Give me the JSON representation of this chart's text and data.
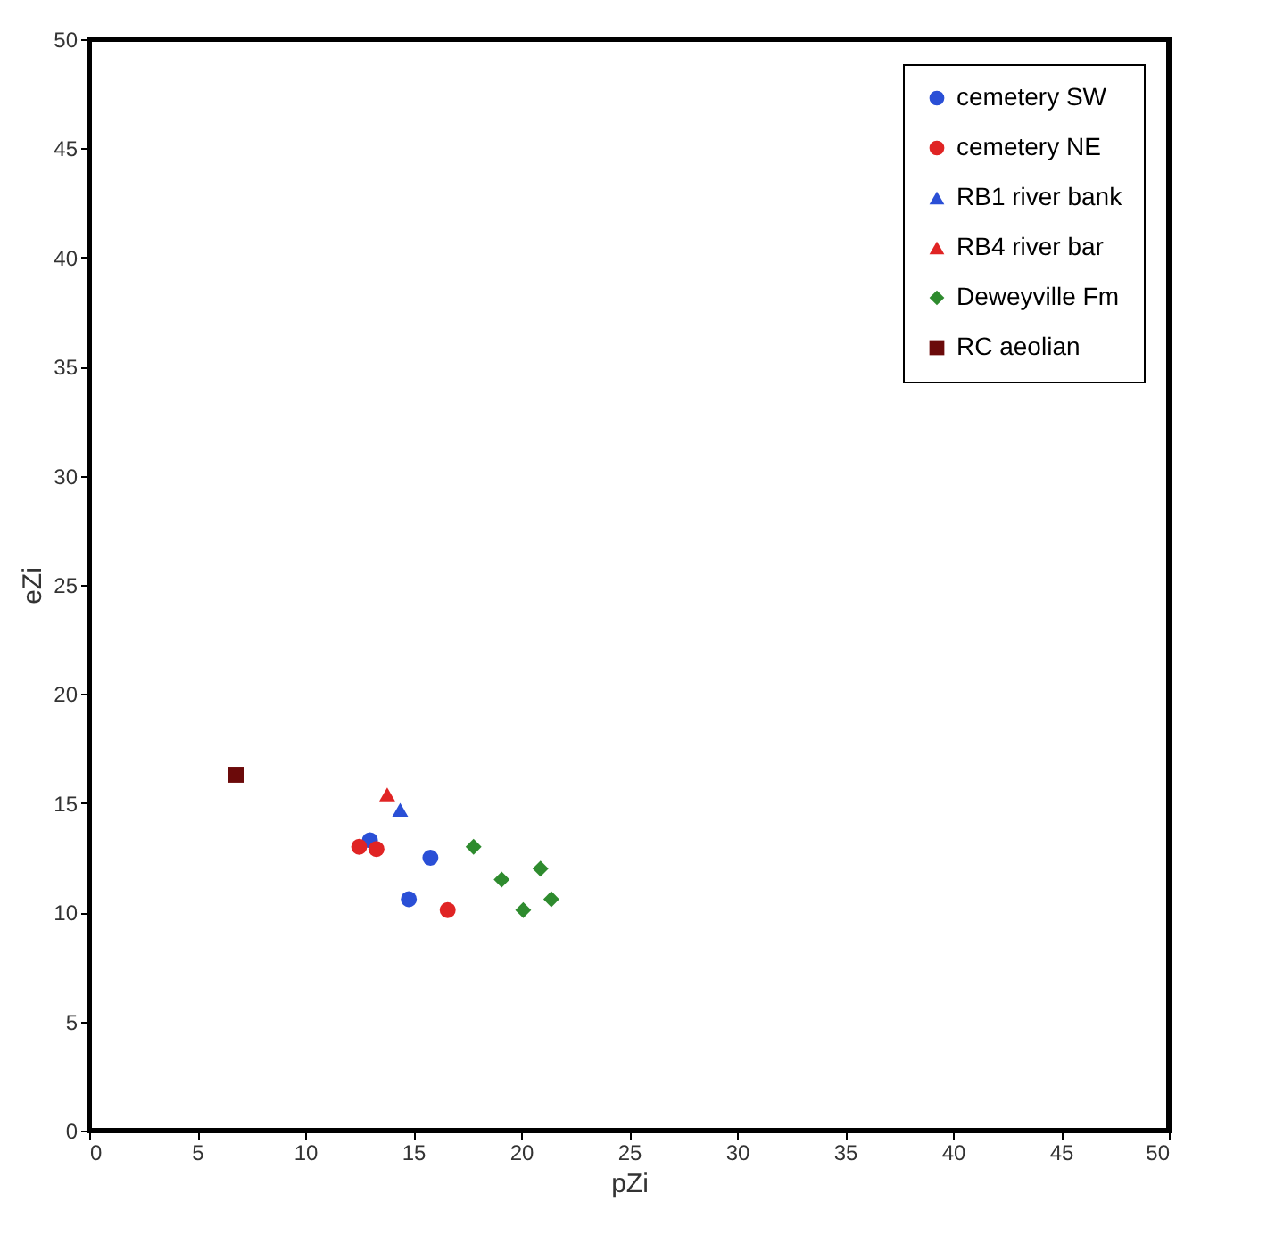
{
  "chart_data": {
    "type": "scatter",
    "xlabel": "pZi",
    "ylabel": "eZi",
    "xlim": [
      0,
      50
    ],
    "ylim": [
      0,
      50
    ],
    "xticks": [
      0,
      5,
      10,
      15,
      20,
      25,
      30,
      35,
      40,
      45,
      50
    ],
    "yticks": [
      0,
      5,
      10,
      15,
      20,
      25,
      30,
      35,
      40,
      45,
      50
    ],
    "grid": false,
    "legend": "top right",
    "series": [
      {
        "name": "cemetery SW",
        "color": "#2a4fd6",
        "marker": "circle",
        "x": [
          13.0,
          15.8,
          14.8
        ],
        "values": [
          13.3,
          12.5,
          10.6
        ]
      },
      {
        "name": "cemetery NE",
        "color": "#e02424",
        "marker": "circle",
        "x": [
          12.5,
          13.3,
          16.6
        ],
        "values": [
          13.0,
          12.9,
          10.1
        ]
      },
      {
        "name": "RB1 river bank",
        "color": "#2a4fd6",
        "marker": "triangle",
        "x": [
          14.4
        ],
        "values": [
          14.7
        ]
      },
      {
        "name": "RB4 river bar",
        "color": "#e02424",
        "marker": "triangle",
        "x": [
          13.8
        ],
        "values": [
          15.4
        ]
      },
      {
        "name": "Deweyville Fm",
        "color": "#2e8b2e",
        "marker": "diamond",
        "x": [
          17.8,
          19.1,
          20.9,
          20.1,
          21.4
        ],
        "values": [
          13.0,
          11.5,
          12.0,
          10.1,
          10.6
        ]
      },
      {
        "name": "RC aeolian",
        "color": "#6b0a0a",
        "marker": "square",
        "x": [
          6.8
        ],
        "values": [
          16.3
        ]
      }
    ]
  }
}
